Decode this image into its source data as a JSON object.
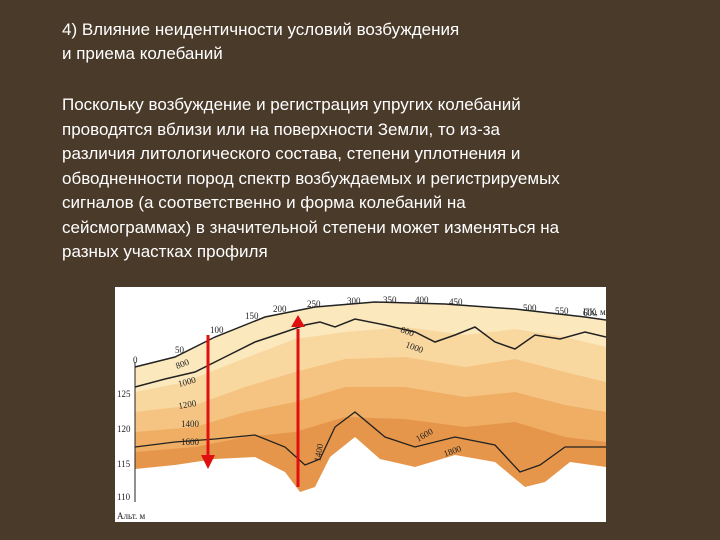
{
  "title": [
    "4) Влияние неидентичности условий возбуждения",
    "и приема колебаний"
  ],
  "body": [
    "Поскольку возбуждение и регистрация упругих колебаний",
    "проводятся вблизи или на поверхности Земли, то из-за",
    "различия литологического состава, степени уплотнения и",
    "обводненности пород спектр возбуждаемых и регистрируемых",
    "сигналов (а соответственно и форма колебаний на",
    "сейсмограммах) в значительной степени может изменяться на",
    "разных участках профиля"
  ],
  "figure": {
    "pk_labels": [
      "0",
      "50",
      "100",
      "150",
      "200",
      "250",
      "300",
      "350",
      "400",
      "450",
      "500",
      "550",
      "600",
      "ПК, м"
    ],
    "alt_labels": [
      "125",
      "120",
      "115",
      "110",
      "Альт. м"
    ],
    "contour_labels": [
      "800",
      "1000",
      "1200",
      "1400",
      "1600",
      "1400",
      "800",
      "1000",
      "1600",
      "1800"
    ]
  }
}
